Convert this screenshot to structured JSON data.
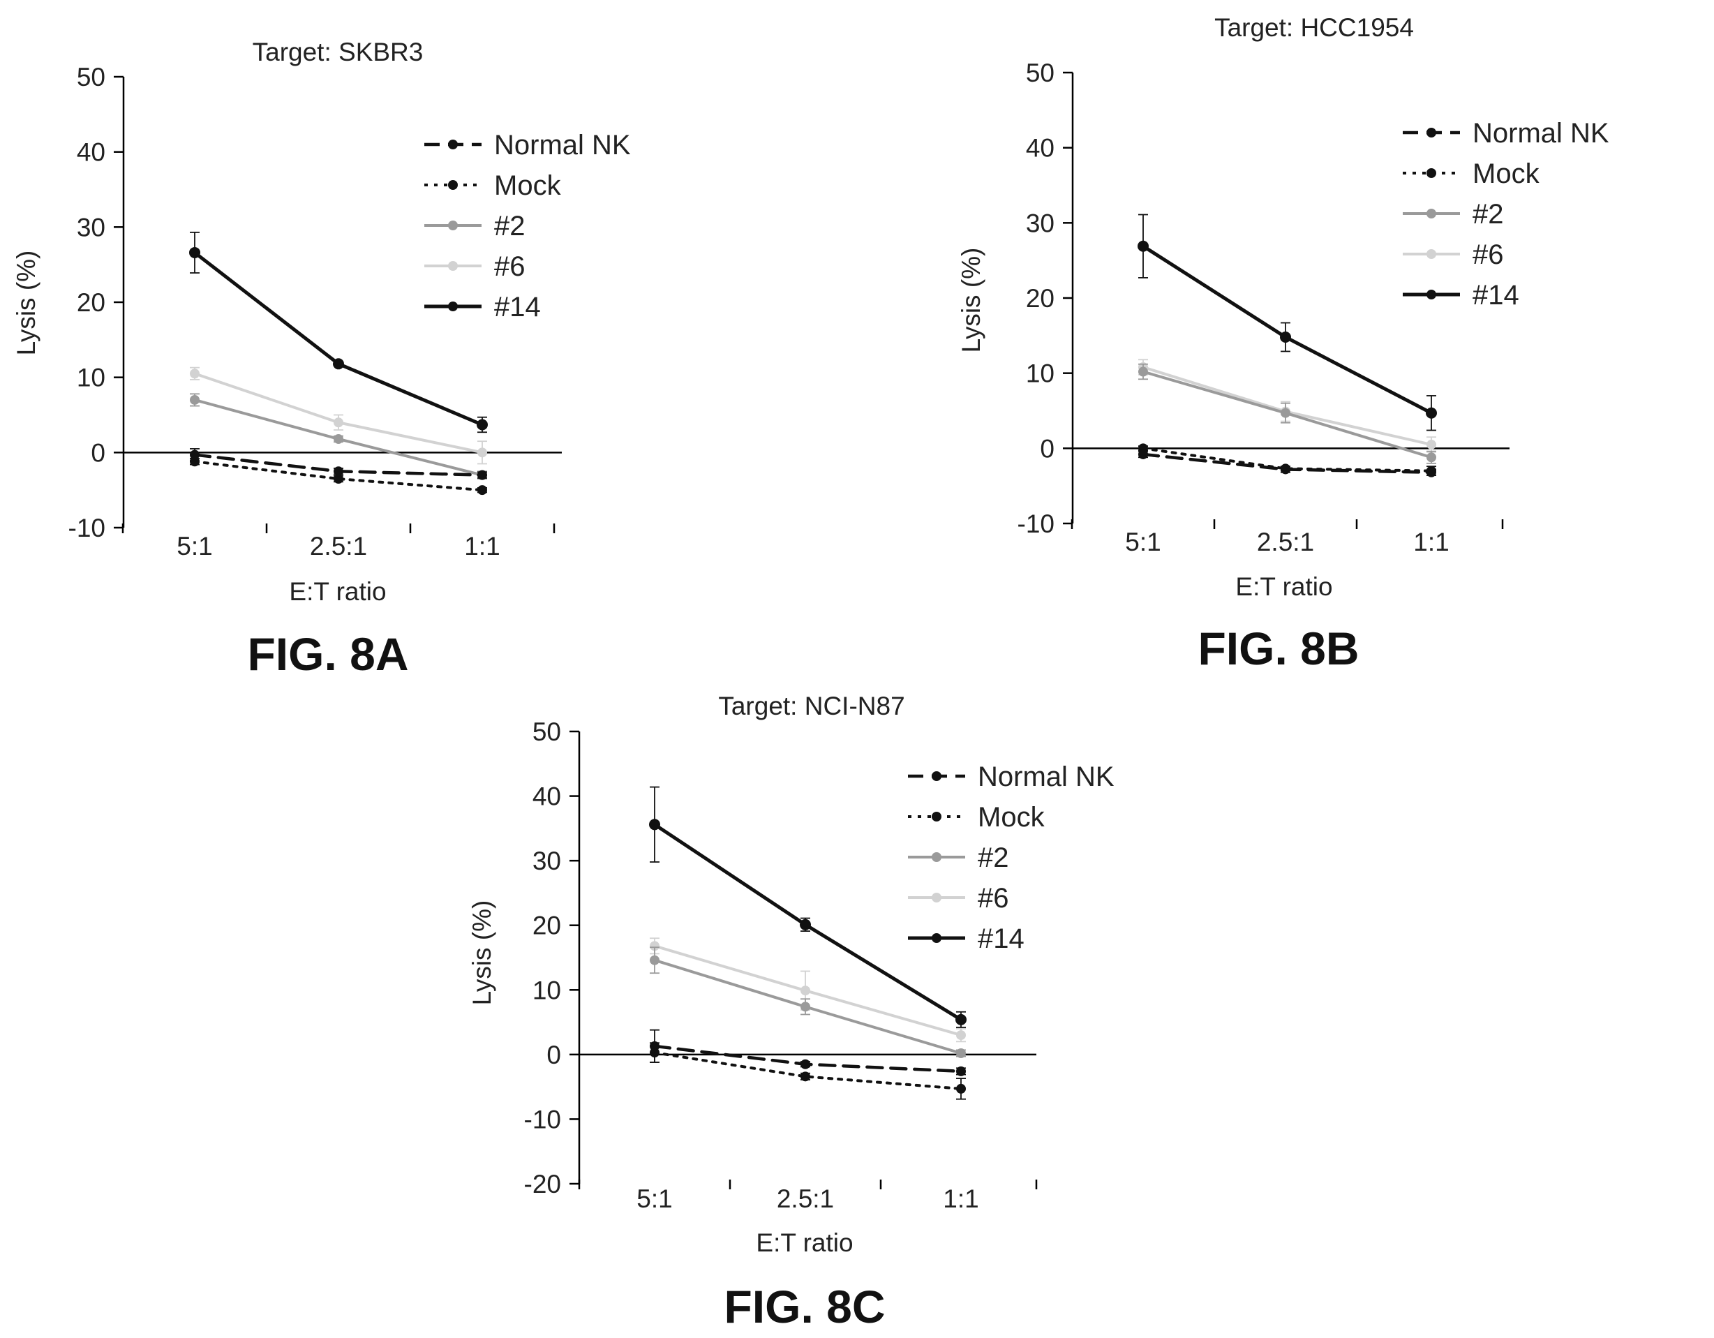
{
  "figure_labels": [
    "FIG. 8A",
    "FIG. 8B",
    "FIG. 8C"
  ],
  "style": {
    "series_colors": {
      "Normal NK": "#111111",
      "Mock": "#111111",
      "#2": "#9a9a9a",
      "#6": "#d2d2d2",
      "#14": "#111111"
    },
    "series_dash": {
      "Normal NK": "dashed",
      "Mock": "dotted",
      "#2": "solid",
      "#6": "solid",
      "#14": "solid"
    }
  },
  "chart_data": [
    {
      "type": "line",
      "title": "Target: SKBR3",
      "xlabel": "E:T ratio",
      "ylabel": "Lysis (%)",
      "categories": [
        "5:1",
        "2.5:1",
        "1:1"
      ],
      "ylim": [
        -10,
        50
      ],
      "yticks": [
        -10,
        0,
        10,
        20,
        30,
        40,
        50
      ],
      "legend": "right",
      "series": [
        {
          "name": "Normal NK",
          "values": [
            -0.3,
            -2.5,
            -3.0
          ],
          "errors": [
            0.8,
            0.4,
            0.4
          ]
        },
        {
          "name": "Mock",
          "values": [
            -1.2,
            -3.5,
            -5.0
          ],
          "errors": [
            0.4,
            0.4,
            0.3
          ]
        },
        {
          "name": "#2",
          "values": [
            7.0,
            1.8,
            -3.0
          ],
          "errors": [
            0.8,
            0.4,
            0.5
          ]
        },
        {
          "name": "#6",
          "values": [
            10.5,
            4.0,
            0.0
          ],
          "errors": [
            0.8,
            1.0,
            1.5
          ]
        },
        {
          "name": "#14",
          "values": [
            26.6,
            11.8,
            3.7
          ],
          "errors": [
            2.7,
            0.3,
            1.0
          ]
        }
      ]
    },
    {
      "type": "line",
      "title": "Target: HCC1954",
      "xlabel": "E:T ratio",
      "ylabel": "Lysis (%)",
      "categories": [
        "5:1",
        "2.5:1",
        "1:1"
      ],
      "ylim": [
        -10,
        50
      ],
      "yticks": [
        -10,
        0,
        10,
        20,
        30,
        40,
        50
      ],
      "legend": "right",
      "series": [
        {
          "name": "Normal NK",
          "values": [
            -0.8,
            -2.8,
            -3.2
          ],
          "errors": [
            0.4,
            0.4,
            0.4
          ]
        },
        {
          "name": "Mock",
          "values": [
            0.0,
            -2.7,
            -3.0
          ],
          "errors": [
            0.3,
            0.3,
            0.6
          ]
        },
        {
          "name": "#2",
          "values": [
            10.2,
            4.7,
            -1.2
          ],
          "errors": [
            1.0,
            1.3,
            0.8
          ]
        },
        {
          "name": "#6",
          "values": [
            10.8,
            4.9,
            0.5
          ],
          "errors": [
            1.0,
            1.3,
            1.0
          ]
        },
        {
          "name": "#14",
          "values": [
            26.9,
            14.8,
            4.7
          ],
          "errors": [
            4.2,
            1.9,
            2.3
          ]
        }
      ]
    },
    {
      "type": "line",
      "title": "Target: NCI-N87",
      "xlabel": "E:T ratio",
      "ylabel": "Lysis (%)",
      "categories": [
        "5:1",
        "2.5:1",
        "1:1"
      ],
      "ylim": [
        -20,
        50
      ],
      "yticks": [
        -20,
        -10,
        0,
        10,
        20,
        30,
        40,
        50
      ],
      "legend": "right",
      "series": [
        {
          "name": "Normal NK",
          "values": [
            1.3,
            -1.5,
            -2.6
          ],
          "errors": [
            2.5,
            0.4,
            0.5
          ]
        },
        {
          "name": "Mock",
          "values": [
            0.3,
            -3.4,
            -5.3
          ],
          "errors": [
            1.5,
            0.5,
            1.6
          ]
        },
        {
          "name": "#2",
          "values": [
            14.6,
            7.4,
            0.2
          ],
          "errors": [
            2.0,
            1.2,
            0.5
          ]
        },
        {
          "name": "#6",
          "values": [
            16.8,
            9.9,
            3.0
          ],
          "errors": [
            1.2,
            3.0,
            1.0
          ]
        },
        {
          "name": "#14",
          "values": [
            35.6,
            20.1,
            5.4
          ],
          "errors": [
            5.8,
            1.0,
            1.2
          ]
        }
      ]
    }
  ]
}
